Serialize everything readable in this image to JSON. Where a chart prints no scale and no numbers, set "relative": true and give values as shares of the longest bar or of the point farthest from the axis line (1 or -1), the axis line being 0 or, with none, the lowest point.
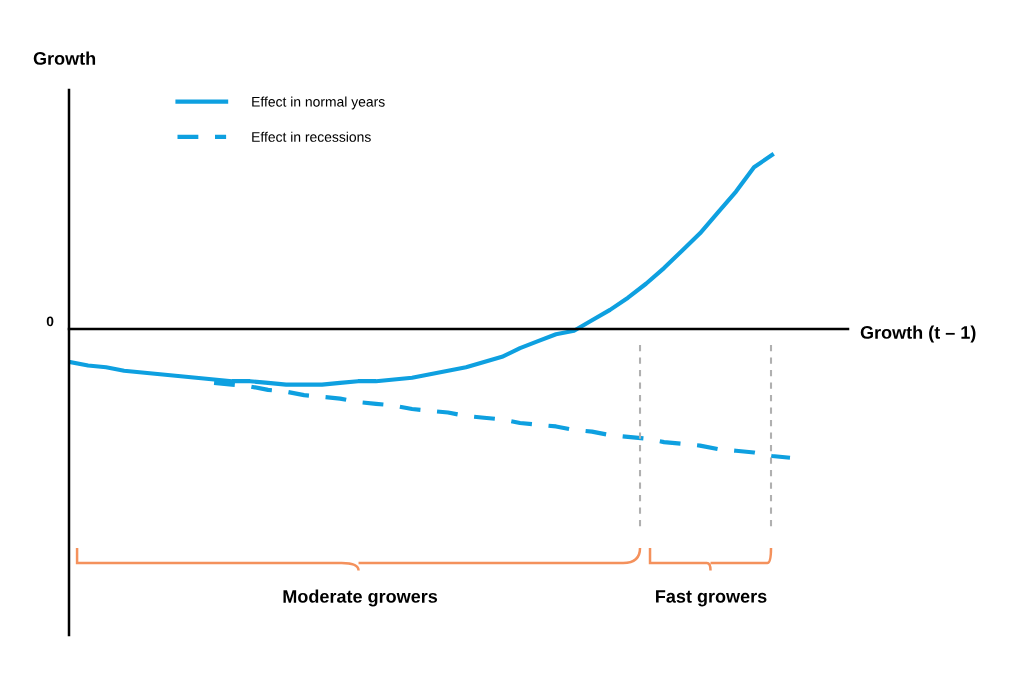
{
  "chart_data": {
    "type": "line",
    "relative": true,
    "ylabel": "Growth",
    "xlabel": "Growth (t – 1)",
    "legend": "top left",
    "marker": "none",
    "grid": false,
    "categories": [
      null,
      null,
      null,
      null,
      null,
      null,
      null,
      null,
      null,
      null,
      null,
      null,
      null,
      null,
      null,
      null,
      null,
      null,
      null,
      null,
      null,
      null,
      null,
      null,
      null,
      null,
      null,
      null,
      null,
      null,
      null,
      null,
      null,
      null,
      null,
      null,
      null,
      null,
      null,
      null,
      null
    ],
    "series": [
      {
        "name": "Effect in normal years",
        "color": "#0ea0e0",
        "line_style": "solid",
        "values": [
          -0.19,
          -0.21,
          -0.22,
          -0.24,
          -0.25,
          -0.26,
          -0.27,
          -0.28,
          -0.29,
          -0.3,
          -0.3,
          -0.31,
          -0.32,
          -0.32,
          -0.32,
          -0.31,
          -0.3,
          -0.3,
          -0.29,
          -0.28,
          -0.26,
          -0.24,
          -0.22,
          -0.19,
          -0.16,
          -0.11,
          -0.07,
          -0.03,
          -0.01,
          0.05,
          0.11,
          0.18,
          0.26,
          0.35,
          0.45,
          0.55,
          0.67,
          0.79,
          0.93,
          1.0,
          null
        ]
      },
      {
        "name": "Effect in recessions",
        "color": "#0ea0e0",
        "line_style": "dashed",
        "values": [
          null,
          null,
          null,
          null,
          null,
          null,
          null,
          null,
          -0.31,
          -0.32,
          -0.33,
          -0.35,
          -0.36,
          -0.38,
          -0.39,
          -0.4,
          -0.42,
          -0.43,
          -0.44,
          -0.46,
          -0.47,
          -0.48,
          -0.5,
          -0.51,
          -0.52,
          -0.54,
          -0.55,
          -0.56,
          -0.58,
          -0.59,
          -0.61,
          -0.62,
          -0.63,
          -0.65,
          -0.66,
          -0.67,
          -0.69,
          -0.7,
          -0.71,
          -0.73,
          -0.74
        ]
      }
    ],
    "annotations": [
      "0",
      "Moderate growers",
      "Fast growers"
    ]
  }
}
